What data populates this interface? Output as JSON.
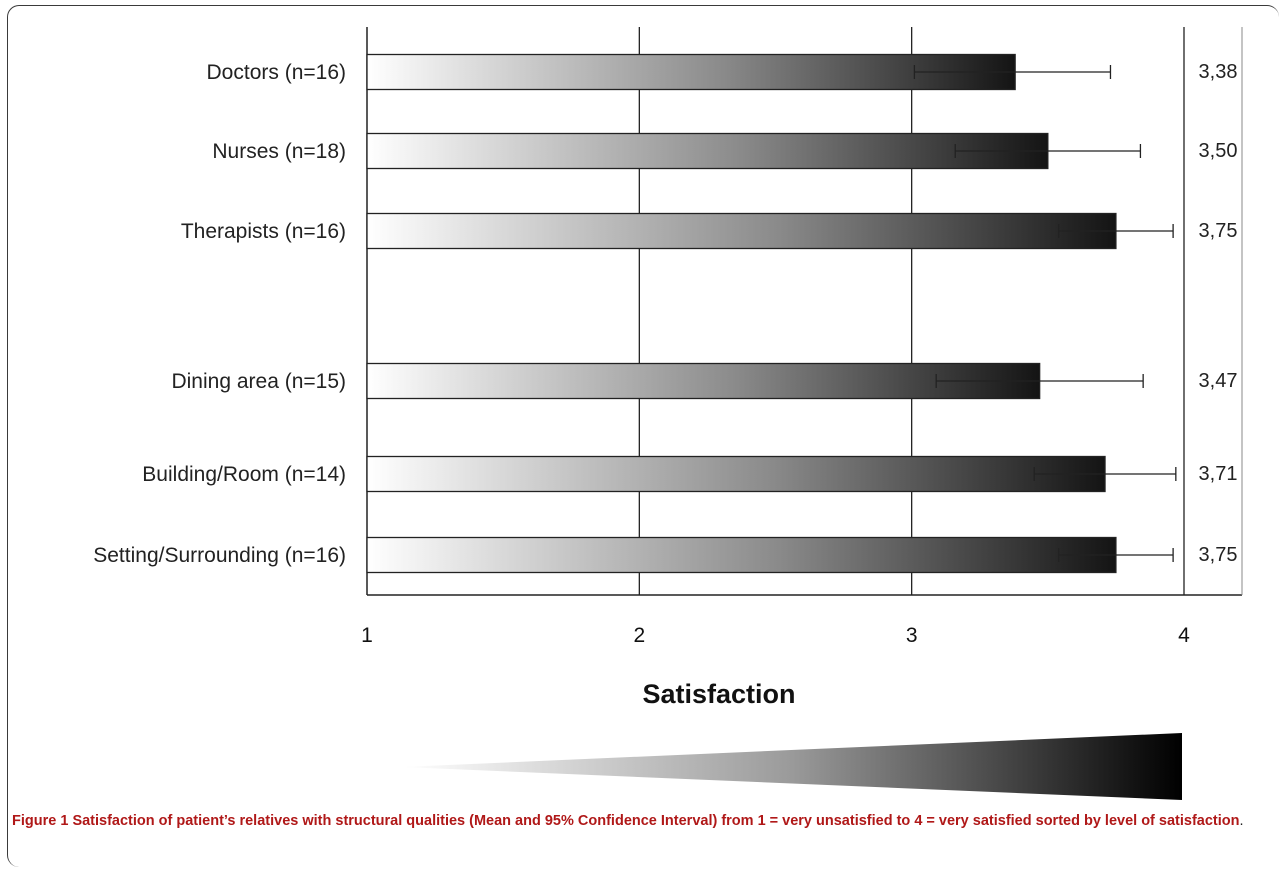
{
  "caption": {
    "label": "Figure 1",
    "text": "Satisfaction of patient’s relatives with structural qualities (Mean and 95% Confidence Interval) from 1 = very unsatisfied to 4 = very satisfied sorted by level of satisfaction",
    "end": "."
  },
  "chart_data": {
    "type": "bar",
    "orientation": "horizontal",
    "xlabel": "Satisfaction",
    "xlim": [
      1,
      4
    ],
    "xticks": [
      "1",
      "2",
      "3",
      "4"
    ],
    "grid": "vertical",
    "categories": [
      "Doctors (n=16)",
      "Nurses (n=18)",
      "Therapists (n=16)",
      "Dining area (n=15)",
      "Building/Room (n=14)",
      "Setting/Surrounding (n=16)"
    ],
    "values": [
      3.38,
      3.5,
      3.75,
      3.47,
      3.71,
      3.75
    ],
    "value_labels": [
      "3,38",
      "3,50",
      "3,75",
      "3,47",
      "3,71",
      "3,75"
    ],
    "ci_lower": [
      3.01,
      3.16,
      3.54,
      3.09,
      3.45,
      3.54
    ],
    "ci_upper": [
      3.73,
      3.84,
      3.96,
      3.85,
      3.97,
      3.96
    ],
    "group_gap_after_index": 2,
    "bar_fill": "gradient light-to-dark",
    "colors": {
      "gradient_start": "#ffffff",
      "gradient_end": "#141414",
      "axis": "#222222"
    }
  }
}
